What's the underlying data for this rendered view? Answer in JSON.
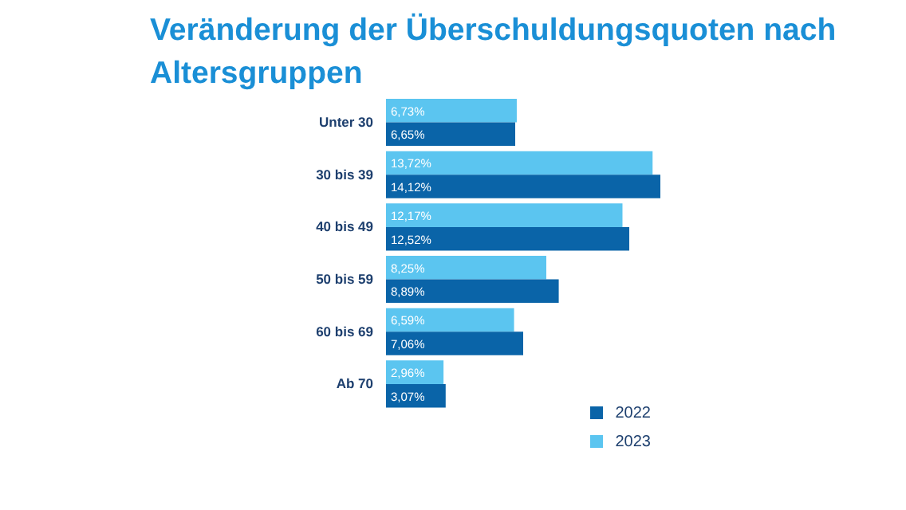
{
  "chart_data": {
    "type": "bar",
    "orientation": "horizontal",
    "title": "Veränderung der Überschuldungsquoten nach Altersgruppen",
    "categories": [
      "Unter 30",
      "30 bis 39",
      "40 bis 49",
      "50 bis 59",
      "60 bis 69",
      "Ab 70"
    ],
    "series": [
      {
        "name": "2023",
        "color": "#5bc5f0",
        "values": [
          6.73,
          13.72,
          12.17,
          8.25,
          6.59,
          2.96
        ],
        "value_labels": [
          "6,73%",
          "13,72%",
          "12,17%",
          "8,25%",
          "6,59%",
          "2,96%"
        ]
      },
      {
        "name": "2022",
        "color": "#0a64a8",
        "values": [
          6.65,
          14.12,
          12.52,
          8.89,
          7.06,
          3.07
        ],
        "value_labels": [
          "6,65%",
          "14,12%",
          "12,52%",
          "8,89%",
          "7,06%",
          "3,07%"
        ]
      }
    ],
    "legend": "bottom right",
    "grid": false
  }
}
